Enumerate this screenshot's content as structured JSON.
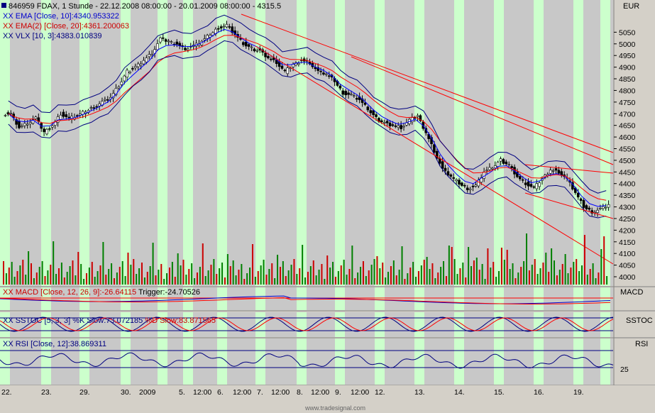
{
  "header": {
    "title": "846959  FDAX, 1 Stunde - 22.12.2008 08:00:00 - 20.01.2009 08:00:00 - 4315.5",
    "legend": [
      {
        "text": "XX EMA [Close, 10]:4340.953322",
        "color": "#0000cc"
      },
      {
        "text": "XX EMA(2) [Close, 20]:4361.200063",
        "color": "#cc0000"
      },
      {
        "text": "XX VLX [10, 3]:4383.010839",
        "color": "#000080"
      }
    ],
    "currency": "EUR"
  },
  "panes": {
    "macd": {
      "label": "MACD",
      "legend_main": "XX MACD [Close, 12, 26, 9]:-26.64115",
      "legend_trigger": " Trigger:-24.70526"
    },
    "sstoc": {
      "label": "SSTOC",
      "legend_main": "XX SSTOC [5, 3, 3] %K Slow:73.072185",
      "legend_d": " %D Slow:83.871565"
    },
    "rsi": {
      "label": "RSI",
      "legend_main": "XX RSI [Close, 12]:38.869311",
      "axis_tick": "25"
    }
  },
  "watermark": "www.tradesignal.com",
  "colors": {
    "band": "#ccffcc",
    "bg": "#c8c8c8",
    "ema": "#0000ff",
    "ema2": "#ff0000",
    "vlx": "#000080",
    "up": "#008000",
    "down": "#cc0000"
  },
  "chart_data": {
    "type": "candlestick",
    "y_ticks": [
      4000,
      4050,
      4100,
      4150,
      4200,
      4250,
      4300,
      4350,
      4400,
      4450,
      4500,
      4550,
      4600,
      4650,
      4700,
      4750,
      4800,
      4850,
      4900,
      4950,
      5000,
      5050
    ],
    "x_labels": [
      "22.",
      "23.",
      "29.",
      "30.",
      "2009",
      "5.",
      "12:00",
      "6.",
      "12:00",
      "7.",
      "12:00",
      "8.",
      "12:00",
      "9.",
      "12:00",
      "12.",
      "13.",
      "14.",
      "15.",
      "16.",
      "19."
    ],
    "close_series": [
      4700,
      4640,
      4660,
      4680,
      4620,
      4650,
      4700,
      4680,
      4690,
      4710,
      4730,
      4750,
      4770,
      4820,
      4880,
      4900,
      4930,
      4960,
      5020,
      5010,
      5000,
      4980,
      4990,
      5010,
      5040,
      5070,
      5080,
      5040,
      5000,
      4980,
      4970,
      4940,
      4920,
      4880,
      4910,
      4930,
      4920,
      4880,
      4870,
      4840,
      4790,
      4780,
      4760,
      4720,
      4680,
      4660,
      4650,
      4640,
      4670,
      4690,
      4620,
      4540,
      4460,
      4430,
      4400,
      4380,
      4390,
      4450,
      4470,
      4500,
      4480,
      4430,
      4400,
      4380,
      4420,
      4460,
      4450,
      4420,
      4360,
      4300,
      4280,
      4290,
      4310
    ]
  }
}
